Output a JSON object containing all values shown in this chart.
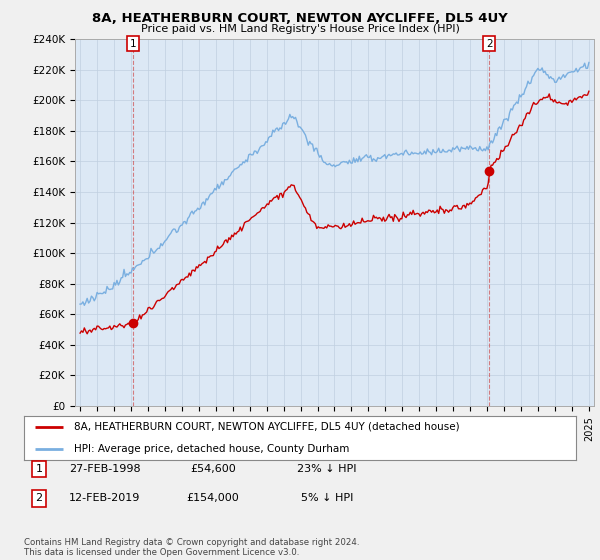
{
  "title": "8A, HEATHERBURN COURT, NEWTON AYCLIFFE, DL5 4UY",
  "subtitle": "Price paid vs. HM Land Registry's House Price Index (HPI)",
  "ylabel_ticks": [
    "£0",
    "£20K",
    "£40K",
    "£60K",
    "£80K",
    "£100K",
    "£120K",
    "£140K",
    "£160K",
    "£180K",
    "£200K",
    "£220K",
    "£240K"
  ],
  "ylim": [
    0,
    240000
  ],
  "ytick_values": [
    0,
    20000,
    40000,
    60000,
    80000,
    100000,
    120000,
    140000,
    160000,
    180000,
    200000,
    220000,
    240000
  ],
  "red_line_color": "#cc0000",
  "blue_line_color": "#7aafe0",
  "plot_bg_color": "#dce8f5",
  "sale1_price_actual": 54600,
  "sale1_t": 1998.12,
  "sale2_price_actual": 154000,
  "sale2_t": 2019.12,
  "sale1_date": "27-FEB-1998",
  "sale1_price": 54600,
  "sale1_hpi": "23% ↓ HPI",
  "sale2_date": "12-FEB-2019",
  "sale2_price": 154000,
  "sale2_hpi": "5% ↓ HPI",
  "legend_label1": "8A, HEATHERBURN COURT, NEWTON AYCLIFFE, DL5 4UY (detached house)",
  "legend_label2": "HPI: Average price, detached house, County Durham",
  "footer": "Contains HM Land Registry data © Crown copyright and database right 2024.\nThis data is licensed under the Open Government Licence v3.0.",
  "background_color": "#f0f0f0",
  "xlim_left": 1994.7,
  "xlim_right": 2025.3
}
